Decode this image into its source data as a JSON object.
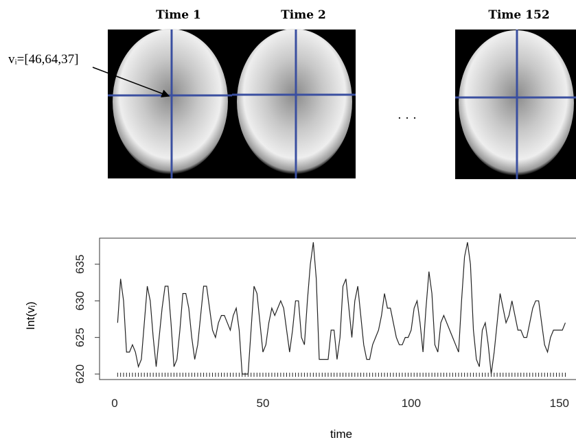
{
  "figure": {
    "panels": [
      "Time 1",
      "Time 2",
      "Time 152"
    ],
    "voxel_label": "vᵢ=[46,64,37]",
    "ellipsis": "· · ·"
  },
  "chart_data": {
    "type": "line",
    "x_label": "time",
    "y_label": "Int(vᵢ)",
    "color": "#222222",
    "rug": true,
    "x": [
      1,
      2,
      3,
      4,
      5,
      6,
      7,
      8,
      9,
      10,
      11,
      12,
      13,
      14,
      15,
      16,
      17,
      18,
      19,
      20,
      21,
      22,
      23,
      24,
      25,
      26,
      27,
      28,
      29,
      30,
      31,
      32,
      33,
      34,
      35,
      36,
      37,
      38,
      39,
      40,
      41,
      42,
      43,
      44,
      45,
      46,
      47,
      48,
      49,
      50,
      51,
      52,
      53,
      54,
      55,
      56,
      57,
      58,
      59,
      60,
      61,
      62,
      63,
      64,
      65,
      66,
      67,
      68,
      69,
      70,
      71,
      72,
      73,
      74,
      75,
      76,
      77,
      78,
      79,
      80,
      81,
      82,
      83,
      84,
      85,
      86,
      87,
      88,
      89,
      90,
      91,
      92,
      93,
      94,
      95,
      96,
      97,
      98,
      99,
      100,
      101,
      102,
      103,
      104,
      105,
      106,
      107,
      108,
      109,
      110,
      111,
      112,
      113,
      114,
      115,
      116,
      117,
      118,
      119,
      120,
      121,
      122,
      123,
      124,
      125,
      126,
      127,
      128,
      129,
      130,
      131,
      132,
      133,
      134,
      135,
      136,
      137,
      138,
      139,
      140,
      141,
      142,
      143,
      144,
      145,
      146,
      147,
      148,
      149,
      150,
      151,
      152
    ],
    "values": [
      627,
      633,
      630,
      623,
      623,
      624,
      623,
      621,
      622,
      627,
      632,
      630,
      625,
      621,
      625,
      629,
      632,
      632,
      627,
      621,
      622,
      626,
      631,
      631,
      629,
      625,
      622,
      624,
      628,
      632,
      632,
      629,
      626,
      625,
      627,
      628,
      628,
      627,
      626,
      628,
      629,
      626,
      620,
      620,
      620,
      626,
      632,
      631,
      627,
      623,
      624,
      627,
      629,
      628,
      629,
      630,
      629,
      626,
      623,
      626,
      630,
      630,
      625,
      624,
      630,
      635,
      638,
      633,
      622,
      622,
      622,
      622,
      626,
      626,
      622,
      625,
      632,
      633,
      629,
      625,
      630,
      632,
      628,
      624,
      622,
      622,
      624,
      625,
      626,
      628,
      631,
      629,
      629,
      627,
      625,
      624,
      624,
      625,
      625,
      626,
      629,
      630,
      627,
      623,
      629,
      634,
      631,
      624,
      623,
      627,
      628,
      627,
      626,
      625,
      624,
      623,
      630,
      636,
      638,
      635,
      626,
      622,
      621,
      626,
      627,
      624,
      620,
      623,
      627,
      631,
      629,
      627,
      628,
      630,
      628,
      626,
      626,
      625,
      625,
      627,
      629,
      630,
      630,
      627,
      624,
      623,
      625,
      626,
      626,
      626,
      626,
      627
    ],
    "xlim": [
      -5.1,
      155.6
    ],
    "ylim": [
      619.25,
      638.56
    ],
    "xticks": [
      0,
      50,
      100,
      150
    ],
    "yticks": [
      620,
      625,
      630,
      635
    ]
  }
}
